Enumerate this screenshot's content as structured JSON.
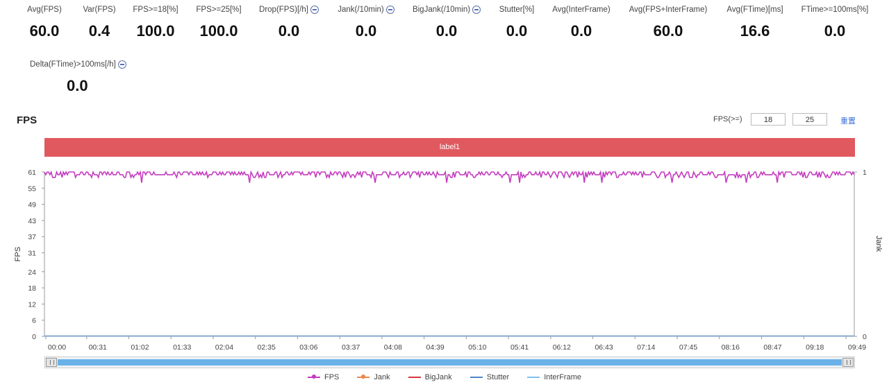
{
  "metrics": [
    {
      "label": "Avg(FPS)",
      "value": "60.0",
      "help": false
    },
    {
      "label": "Var(FPS)",
      "value": "0.4",
      "help": false
    },
    {
      "label": "FPS>=18[%]",
      "value": "100.0",
      "help": false
    },
    {
      "label": "FPS>=25[%]",
      "value": "100.0",
      "help": false
    },
    {
      "label": "Drop(FPS)[/h]",
      "value": "0.0",
      "help": true
    },
    {
      "label": "Jank(/10min)",
      "value": "0.0",
      "help": true
    },
    {
      "label": "BigJank(/10min)",
      "value": "0.0",
      "help": true
    },
    {
      "label": "Stutter[%]",
      "value": "0.0",
      "help": false
    },
    {
      "label": "Avg(InterFrame)",
      "value": "0.0",
      "help": false
    },
    {
      "label": "Avg(FPS+InterFrame)",
      "value": "60.0",
      "help": false
    },
    {
      "label": "Avg(FTime)[ms]",
      "value": "16.6",
      "help": false
    },
    {
      "label": "FTime>=100ms[%]",
      "value": "0.0",
      "help": false
    },
    {
      "label": "Delta(FTime)>100ms[/h]",
      "value": "0.0",
      "help": true
    }
  ],
  "chart_header": {
    "title": "FPS",
    "threshold_label": "FPS(>=)",
    "threshold_low": "18",
    "threshold_high": "25",
    "reset_label": "重置"
  },
  "label_bar": {
    "text": "label1",
    "color": "#e0595f"
  },
  "chart_data": {
    "type": "line",
    "title": "FPS",
    "ylabel": "FPS",
    "y2label": "Jank",
    "ylim": [
      0,
      61
    ],
    "y2lim": [
      0,
      1
    ],
    "yticks": [
      0,
      6,
      12,
      18,
      24,
      31,
      37,
      43,
      49,
      55,
      61
    ],
    "y2ticks": [
      0,
      1
    ],
    "xticks": [
      "00:00",
      "00:31",
      "01:02",
      "01:33",
      "02:04",
      "02:35",
      "03:06",
      "03:37",
      "04:08",
      "04:39",
      "05:10",
      "05:41",
      "06:12",
      "06:43",
      "07:14",
      "07:45",
      "08:16",
      "08:47",
      "09:18",
      "09:49"
    ],
    "x_range_seconds": [
      0,
      600
    ],
    "grid": false,
    "legend_position": "bottom",
    "series": [
      {
        "name": "FPS",
        "color": "#c43dbf",
        "axis": "left",
        "baseline": 60,
        "min": 57,
        "max": 61,
        "note_dips_at_s": [
          72,
          152,
          245,
          298,
          345,
          352,
          400,
          413,
          465,
          505,
          520,
          543
        ]
      },
      {
        "name": "Jank",
        "color": "#e8884a",
        "axis": "right",
        "constant": 0
      },
      {
        "name": "BigJank",
        "color": "#d6373f",
        "axis": "right",
        "constant": 0
      },
      {
        "name": "Stutter",
        "color": "#4a86c8",
        "axis": "right",
        "constant": 0
      },
      {
        "name": "InterFrame",
        "color": "#7fc0ee",
        "axis": "left",
        "constant": 0
      }
    ]
  }
}
